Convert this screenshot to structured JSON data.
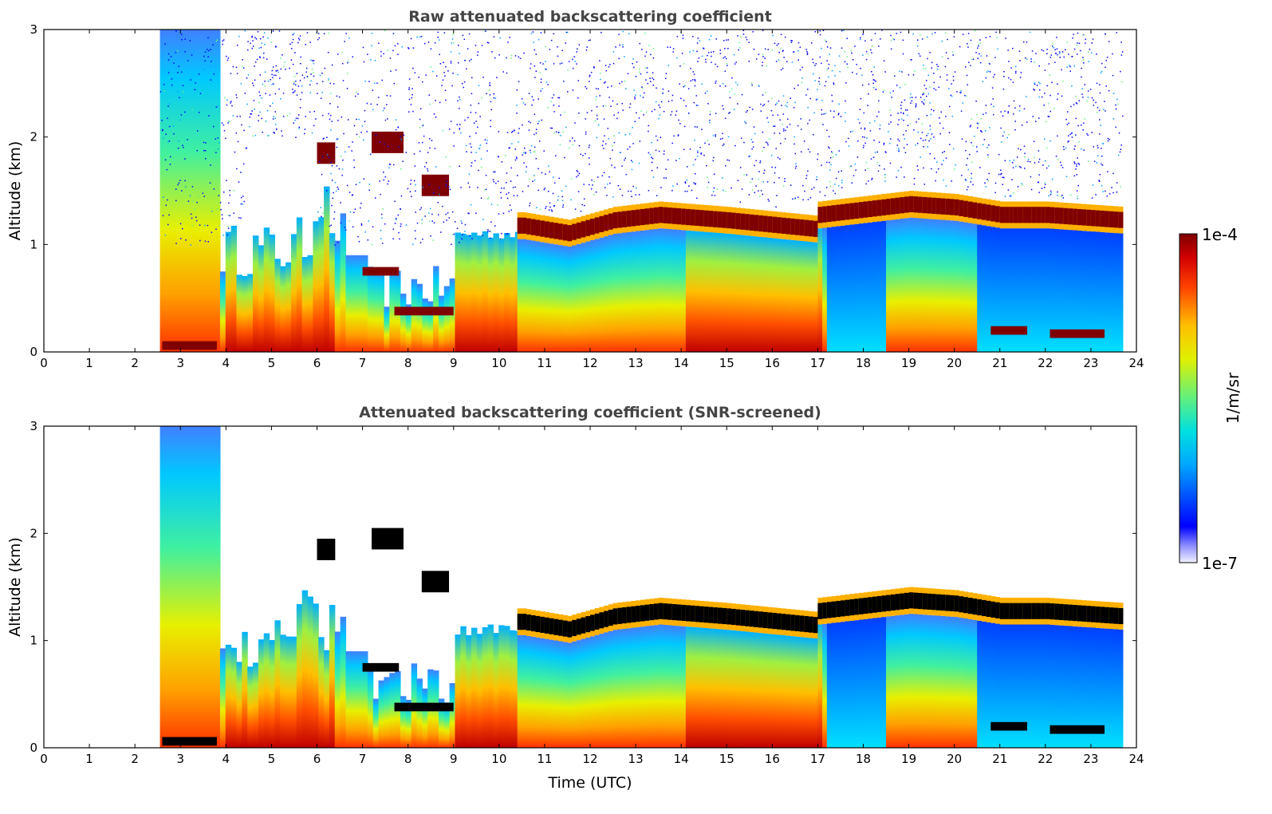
{
  "chart_data": [
    {
      "type": "heatmap",
      "title": "Raw attenuated backscattering coefficient",
      "xlabel": "",
      "ylabel": "Altitude (km)",
      "xlim": [
        0,
        24
      ],
      "ylim": [
        0,
        3
      ],
      "xticks": [
        "0",
        "1",
        "2",
        "3",
        "4",
        "5",
        "6",
        "7",
        "8",
        "9",
        "10",
        "11",
        "12",
        "13",
        "14",
        "15",
        "16",
        "17",
        "18",
        "19",
        "20",
        "21",
        "22",
        "23",
        "24"
      ],
      "yticks": [
        "0",
        "1",
        "2",
        "3"
      ],
      "data_start_hour": 2.55,
      "data_end_hour": 23.7,
      "features": {
        "cloud_top_km": [
          [
            10.5,
            1.25
          ],
          [
            11.5,
            1.18
          ],
          [
            12.5,
            1.3
          ],
          [
            13.5,
            1.35
          ],
          [
            15,
            1.3
          ],
          [
            16.9,
            1.22
          ],
          [
            17,
            1.35
          ],
          [
            18,
            1.4
          ],
          [
            19,
            1.45
          ],
          [
            20,
            1.42
          ],
          [
            21,
            1.35
          ],
          [
            22,
            1.35
          ],
          [
            23.7,
            1.3
          ]
        ],
        "low_layers": [
          [
            7.0,
            7.8,
            0.75
          ],
          [
            7.7,
            9.0,
            0.38
          ],
          [
            2.6,
            3.8,
            0.06
          ],
          [
            20.8,
            21.6,
            0.2
          ],
          [
            22.1,
            23.3,
            0.17
          ]
        ],
        "elevated_layers": [
          [
            7.2,
            7.9,
            1.95
          ],
          [
            8.3,
            8.9,
            1.55
          ],
          [
            6.0,
            6.4,
            1.85
          ]
        ]
      }
    },
    {
      "type": "heatmap",
      "title": "Attenuated backscattering coefficient (SNR-screened)",
      "xlabel": "Time (UTC)",
      "ylabel": "Altitude (km)",
      "xlim": [
        0,
        24
      ],
      "ylim": [
        0,
        3
      ],
      "xticks": [
        "0",
        "1",
        "2",
        "3",
        "4",
        "5",
        "6",
        "7",
        "8",
        "9",
        "10",
        "11",
        "12",
        "13",
        "14",
        "15",
        "16",
        "17",
        "18",
        "19",
        "20",
        "21",
        "22",
        "23",
        "24"
      ],
      "yticks": [
        "0",
        "1",
        "2",
        "3"
      ],
      "data_start_hour": 2.55,
      "data_end_hour": 23.7,
      "features": {
        "cloud_top_km": [
          [
            10.5,
            1.25
          ],
          [
            11.5,
            1.18
          ],
          [
            12.5,
            1.3
          ],
          [
            13.5,
            1.35
          ],
          [
            15,
            1.3
          ],
          [
            16.9,
            1.22
          ],
          [
            17,
            1.35
          ],
          [
            18,
            1.4
          ],
          [
            19,
            1.45
          ],
          [
            20,
            1.42
          ],
          [
            21,
            1.35
          ],
          [
            22,
            1.35
          ],
          [
            23.7,
            1.3
          ]
        ],
        "low_layers": [
          [
            7.0,
            7.8,
            0.75
          ],
          [
            7.7,
            9.0,
            0.38
          ],
          [
            2.6,
            3.8,
            0.06
          ],
          [
            20.8,
            21.6,
            0.2
          ],
          [
            22.1,
            23.3,
            0.17
          ]
        ],
        "elevated_layers": [
          [
            7.2,
            7.9,
            1.95
          ],
          [
            8.3,
            8.9,
            1.55
          ],
          [
            6.0,
            6.4,
            1.85
          ]
        ]
      }
    }
  ],
  "colorbar": {
    "label": "1/m/sr",
    "max_label": "1e-4",
    "min_label": "1e-7",
    "range": [
      1e-07,
      0.0001
    ],
    "colormap": "jet",
    "saturated_color_top": "#7f0000",
    "saturated_color_bottom": "#000000"
  },
  "colors": {
    "axis": "#000000",
    "title": "#444444",
    "background": "#ffffff"
  }
}
